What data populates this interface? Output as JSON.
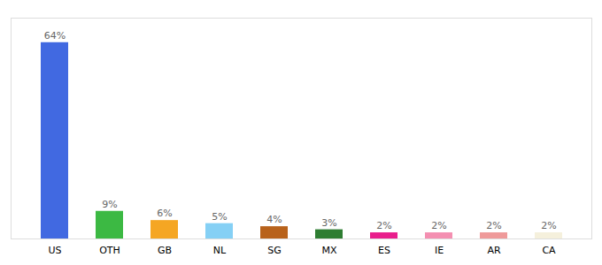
{
  "chart_data": {
    "type": "bar",
    "categories": [
      "US",
      "OTH",
      "GB",
      "NL",
      "SG",
      "MX",
      "ES",
      "IE",
      "AR",
      "CA"
    ],
    "values": [
      64,
      9,
      6,
      5,
      4,
      3,
      2,
      2,
      2,
      2
    ],
    "value_labels": [
      "64%",
      "9%",
      "6%",
      "5%",
      "4%",
      "3%",
      "2%",
      "2%",
      "2%",
      "2%"
    ],
    "colors": [
      "#4169E1",
      "#3CB943",
      "#F5A623",
      "#85D0F5",
      "#B8621B",
      "#2E7D32",
      "#E91E8C",
      "#F48FB1",
      "#EF9A9A",
      "#F5F0DC"
    ],
    "ylim": [
      0,
      72
    ],
    "data_labels": true,
    "tick_labels": "x"
  }
}
